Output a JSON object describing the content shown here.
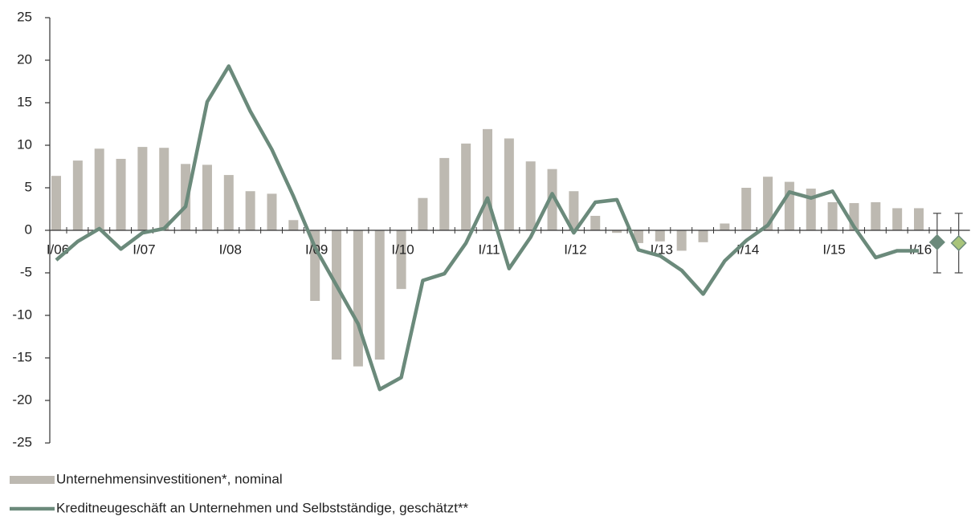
{
  "chart_data": {
    "type": "bar",
    "categories": [
      "I/06",
      null,
      null,
      null,
      "I/07",
      null,
      null,
      null,
      "I/08",
      null,
      null,
      null,
      "I/09",
      null,
      null,
      null,
      "I/10",
      null,
      null,
      null,
      "I/11",
      null,
      null,
      null,
      "I/12",
      null,
      null,
      null,
      "I/13",
      null,
      null,
      null,
      "I/14",
      null,
      null,
      null,
      "I/15",
      null,
      null,
      null,
      "I/16",
      null,
      null
    ],
    "series": [
      {
        "name": "Unternehmensinvestitionen*, nominal",
        "type": "bar",
        "color": "#bdb9b1",
        "values": [
          6.4,
          8.2,
          9.6,
          8.4,
          9.8,
          9.7,
          7.8,
          7.7,
          6.5,
          4.6,
          4.3,
          1.2,
          -8.3,
          -15.2,
          -16.0,
          -15.2,
          -6.9,
          3.8,
          8.5,
          10.2,
          11.9,
          10.8,
          8.1,
          7.2,
          4.6,
          1.7,
          -0.3,
          -1.5,
          -1.3,
          -2.4,
          -1.4,
          0.8,
          5.0,
          6.3,
          5.7,
          4.9,
          3.3,
          3.2,
          3.3,
          2.6,
          2.6,
          null,
          null
        ]
      },
      {
        "name": "Kreditneugeschäft an Unternehmen und Selbstständige, geschätzt**",
        "type": "line",
        "color": "#6b8a7b",
        "values": [
          -3.5,
          -1.3,
          0.2,
          -2.2,
          -0.3,
          0.2,
          2.8,
          15.1,
          19.3,
          14.0,
          9.5,
          4.0,
          -2.0,
          -6.5,
          -11.0,
          -18.7,
          -17.3,
          -5.9,
          -5.1,
          -1.5,
          3.8,
          -4.5,
          -0.8,
          4.3,
          -0.3,
          3.3,
          3.6,
          -2.3,
          -3.0,
          -4.7,
          -7.5,
          -3.6,
          -1.2,
          0.6,
          4.5,
          3.8,
          4.6,
          0.4,
          -3.2,
          -2.4,
          -2.4,
          null,
          null
        ]
      }
    ],
    "estimates": {
      "values": [
        null,
        null,
        null,
        null,
        null,
        null,
        null,
        null,
        null,
        null,
        null,
        null,
        null,
        null,
        null,
        null,
        null,
        null,
        null,
        null,
        null,
        null,
        null,
        null,
        null,
        null,
        null,
        null,
        null,
        null,
        null,
        null,
        null,
        null,
        null,
        null,
        null,
        null,
        null,
        null,
        null,
        -1.4,
        -1.5
      ],
      "lows": [
        null,
        null,
        null,
        null,
        null,
        null,
        null,
        null,
        null,
        null,
        null,
        null,
        null,
        null,
        null,
        null,
        null,
        null,
        null,
        null,
        null,
        null,
        null,
        null,
        null,
        null,
        null,
        null,
        null,
        null,
        null,
        null,
        null,
        null,
        null,
        null,
        null,
        null,
        null,
        null,
        null,
        -5,
        -5
      ],
      "highs": [
        null,
        null,
        null,
        null,
        null,
        null,
        null,
        null,
        null,
        null,
        null,
        null,
        null,
        null,
        null,
        null,
        null,
        null,
        null,
        null,
        null,
        null,
        null,
        null,
        null,
        null,
        null,
        null,
        null,
        null,
        null,
        null,
        null,
        null,
        null,
        null,
        null,
        null,
        null,
        null,
        null,
        2,
        2
      ],
      "colors": [
        null,
        null,
        null,
        null,
        null,
        null,
        null,
        null,
        null,
        null,
        null,
        null,
        null,
        null,
        null,
        null,
        null,
        null,
        null,
        null,
        null,
        null,
        null,
        null,
        null,
        null,
        null,
        null,
        null,
        null,
        null,
        null,
        null,
        null,
        null,
        null,
        null,
        null,
        null,
        null,
        null,
        "#6b8a7b",
        "#a8c47a"
      ]
    },
    "ylim": [
      -25,
      25
    ],
    "yticks": [
      -25,
      -20,
      -15,
      -10,
      -5,
      0,
      5,
      10,
      15,
      20,
      25
    ]
  }
}
